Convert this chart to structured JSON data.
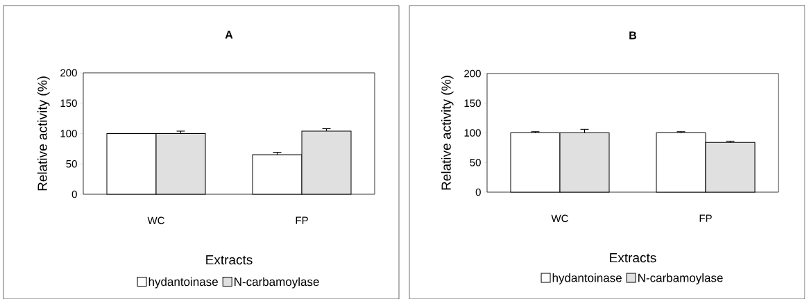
{
  "chart_data": [
    {
      "type": "bar",
      "title": "A",
      "xlabel": "Extracts",
      "ylabel": "Relative activity (%)",
      "categories": [
        "WC",
        "FP"
      ],
      "ylim": [
        0,
        200
      ],
      "yticks": [
        0,
        50,
        100,
        150,
        200
      ],
      "legend": "bottom",
      "series": [
        {
          "name": "hydantoinase",
          "color": "#ffffff",
          "values": [
            100,
            65
          ],
          "errors": [
            0,
            4
          ]
        },
        {
          "name": "N-carbamoylase",
          "color": "#e0e0e0",
          "values": [
            100,
            104
          ],
          "errors": [
            4,
            4
          ]
        }
      ]
    },
    {
      "type": "bar",
      "title": "B",
      "xlabel": "Extracts",
      "ylabel": "Relative activity (%)",
      "categories": [
        "WC",
        "FP"
      ],
      "ylim": [
        0,
        200
      ],
      "yticks": [
        0,
        50,
        100,
        150,
        200
      ],
      "legend": "bottom",
      "series": [
        {
          "name": "hydantoinase",
          "color": "#ffffff",
          "values": [
            100,
            100
          ],
          "errors": [
            2,
            2
          ]
        },
        {
          "name": "N-carbamoylase",
          "color": "#e0e0e0",
          "values": [
            100,
            84
          ],
          "errors": [
            6,
            2
          ]
        }
      ]
    }
  ]
}
